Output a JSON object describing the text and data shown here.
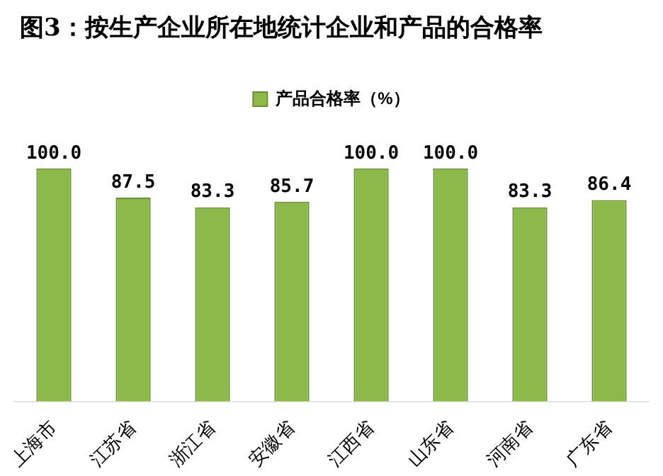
{
  "chart_data": {
    "type": "bar",
    "title": "图3：按生产企业所在地统计企业和产品的合格率",
    "categories": [
      "上海市",
      "江苏省",
      "浙江省",
      "安徽省",
      "江西省",
      "山东省",
      "河南省",
      "广东省"
    ],
    "series": [
      {
        "name": "产品合格率（%）",
        "color": "#8db84a",
        "values": [
          100.0,
          87.5,
          83.3,
          85.7,
          100.0,
          100.0,
          83.3,
          86.4
        ],
        "value_labels": [
          "100.0",
          "87.5",
          "83.3",
          "85.7",
          "100.0",
          "100.0",
          "83.3",
          "86.4"
        ]
      }
    ],
    "legend": "top",
    "grid": false
  }
}
